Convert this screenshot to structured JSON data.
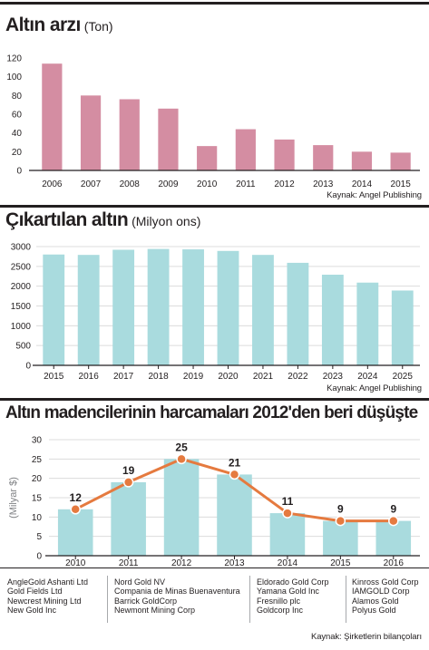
{
  "colors": {
    "supply_bar": "#d48da2",
    "bar": "#a9dbde",
    "line": "#e57a3f",
    "axis": "#231f20",
    "grid": "#dcdcdc"
  },
  "panel1": {
    "title": "Altın arzı",
    "unit": "(Ton)",
    "source": "Kaynak: Angel Publishing"
  },
  "panel2": {
    "title": "Çıkartılan altın",
    "unit": "(Milyon ons)",
    "source": "Kaynak: Angel Publishing"
  },
  "panel3": {
    "title": "Altın madencilerinin harcamaları 2012'den beri düşüşte",
    "source": "Kaynak: Şirketlerin bilançoları"
  },
  "companies": [
    [
      "AngleGold Ashanti Ltd",
      "Gold Fields Ltd",
      "Newcrest Mining Ltd",
      "New Gold Inc"
    ],
    [
      "Nord Gold NV",
      "Compania de Minas Buenaventura",
      "Barrick GoldCorp",
      "Newmont Mining Corp"
    ],
    [
      "Eldorado Gold Corp",
      "Yamana Gold Inc",
      "Fresnillo plc",
      "Goldcorp Inc"
    ],
    [
      "Kinross Gold Corp",
      "IAMGOLD Corp",
      "Alamos Gold",
      "Polyus Gold"
    ]
  ],
  "chart_data": [
    {
      "type": "bar",
      "title": "Altın arzı",
      "ylabel": "(Ton)",
      "categories": [
        "2006",
        "2007",
        "2008",
        "2009",
        "2010",
        "2011",
        "2012",
        "2013",
        "2014",
        "2015"
      ],
      "values": [
        114,
        80,
        76,
        66,
        26,
        44,
        33,
        27,
        20,
        19
      ],
      "ylim": [
        0,
        120
      ],
      "yticks": [
        0,
        20,
        40,
        60,
        80,
        100,
        120
      ],
      "grid": false
    },
    {
      "type": "bar",
      "title": "Çıkartılan altın",
      "ylabel": "(Milyon ons)",
      "categories": [
        "2015",
        "2016",
        "2017",
        "2018",
        "2019",
        "2020",
        "2021",
        "2022",
        "2023",
        "2024",
        "2025"
      ],
      "values": [
        2800,
        2790,
        2920,
        2940,
        2930,
        2890,
        2790,
        2590,
        2290,
        2090,
        1890
      ],
      "ylim": [
        0,
        3000
      ],
      "yticks": [
        0,
        500,
        1000,
        1500,
        2000,
        2500,
        3000
      ],
      "grid": true
    },
    {
      "type": "bar",
      "title": "Altın madencilerinin harcamaları 2012'den beri düşüşte",
      "ylabel": "(Milyar $)",
      "categories": [
        "2010",
        "2011",
        "2012",
        "2013",
        "2014",
        "2015",
        "2016"
      ],
      "values": [
        12,
        19,
        25,
        21,
        11,
        9,
        9
      ],
      "data_labels": [
        "12",
        "19",
        "25",
        "21",
        "11",
        "9",
        "9"
      ],
      "ylim": [
        0,
        30
      ],
      "yticks": [
        0,
        5,
        10,
        15,
        20,
        25,
        30
      ],
      "grid": true,
      "overlay": "line"
    }
  ]
}
